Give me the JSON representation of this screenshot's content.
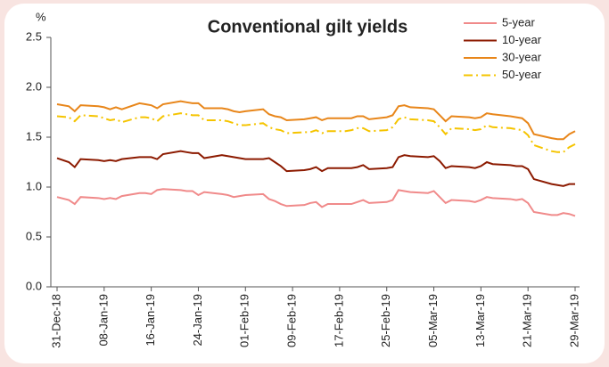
{
  "chart_data": {
    "type": "line",
    "title": "Conventional gilt yields",
    "y_label": "%",
    "x": [
      "31-Dec-18",
      "02-Jan-19",
      "03-Jan-19",
      "04-Jan-19",
      "07-Jan-19",
      "08-Jan-19",
      "09-Jan-19",
      "10-Jan-19",
      "11-Jan-19",
      "14-Jan-19",
      "15-Jan-19",
      "16-Jan-19",
      "17-Jan-19",
      "18-Jan-19",
      "21-Jan-19",
      "22-Jan-19",
      "23-Jan-19",
      "24-Jan-19",
      "25-Jan-19",
      "28-Jan-19",
      "29-Jan-19",
      "30-Jan-19",
      "31-Jan-19",
      "01-Feb-19",
      "04-Feb-19",
      "05-Feb-19",
      "06-Feb-19",
      "07-Feb-19",
      "08-Feb-19",
      "11-Feb-19",
      "12-Feb-19",
      "13-Feb-19",
      "14-Feb-19",
      "15-Feb-19",
      "18-Feb-19",
      "19-Feb-19",
      "20-Feb-19",
      "21-Feb-19",
      "22-Feb-19",
      "25-Feb-19",
      "26-Feb-19",
      "27-Feb-19",
      "28-Feb-19",
      "01-Mar-19",
      "04-Mar-19",
      "05-Mar-19",
      "06-Mar-19",
      "07-Mar-19",
      "08-Mar-19",
      "11-Mar-19",
      "12-Mar-19",
      "13-Mar-19",
      "14-Mar-19",
      "15-Mar-19",
      "18-Mar-19",
      "19-Mar-19",
      "20-Mar-19",
      "21-Mar-19",
      "22-Mar-19",
      "25-Mar-19",
      "26-Mar-19",
      "27-Mar-19",
      "28-Mar-19",
      "29-Mar-19"
    ],
    "series": [
      {
        "name": "5-year",
        "color": "#f08a8a",
        "dash": "none",
        "values": [
          0.9,
          0.87,
          0.83,
          0.9,
          0.89,
          0.88,
          0.89,
          0.88,
          0.91,
          0.94,
          0.94,
          0.93,
          0.97,
          0.98,
          0.97,
          0.96,
          0.96,
          0.92,
          0.95,
          0.93,
          0.92,
          0.9,
          0.91,
          0.92,
          0.93,
          0.88,
          0.86,
          0.83,
          0.81,
          0.82,
          0.84,
          0.85,
          0.8,
          0.83,
          0.83,
          0.83,
          0.85,
          0.87,
          0.84,
          0.85,
          0.87,
          0.97,
          0.96,
          0.95,
          0.94,
          0.96,
          0.9,
          0.84,
          0.87,
          0.86,
          0.85,
          0.87,
          0.9,
          0.89,
          0.88,
          0.87,
          0.88,
          0.84,
          0.75,
          0.72,
          0.72,
          0.74,
          0.73,
          0.71
        ]
      },
      {
        "name": "10-year",
        "color": "#8c1a00",
        "dash": "none",
        "values": [
          1.29,
          1.25,
          1.2,
          1.28,
          1.27,
          1.26,
          1.27,
          1.26,
          1.28,
          1.3,
          1.3,
          1.3,
          1.28,
          1.33,
          1.36,
          1.35,
          1.34,
          1.34,
          1.29,
          1.32,
          1.31,
          1.3,
          1.29,
          1.28,
          1.28,
          1.29,
          1.25,
          1.21,
          1.16,
          1.17,
          1.18,
          1.2,
          1.16,
          1.19,
          1.19,
          1.19,
          1.2,
          1.22,
          1.18,
          1.19,
          1.2,
          1.3,
          1.32,
          1.31,
          1.3,
          1.31,
          1.26,
          1.19,
          1.21,
          1.2,
          1.19,
          1.21,
          1.25,
          1.23,
          1.22,
          1.21,
          1.21,
          1.18,
          1.08,
          1.03,
          1.02,
          1.01,
          1.03,
          1.03
        ]
      },
      {
        "name": "30-year",
        "color": "#e8861a",
        "dash": "none",
        "values": [
          1.83,
          1.81,
          1.76,
          1.82,
          1.81,
          1.8,
          1.78,
          1.8,
          1.78,
          1.84,
          1.83,
          1.82,
          1.79,
          1.83,
          1.86,
          1.85,
          1.84,
          1.84,
          1.79,
          1.79,
          1.78,
          1.76,
          1.75,
          1.76,
          1.78,
          1.73,
          1.71,
          1.7,
          1.67,
          1.68,
          1.69,
          1.7,
          1.67,
          1.69,
          1.69,
          1.69,
          1.71,
          1.71,
          1.68,
          1.7,
          1.72,
          1.81,
          1.82,
          1.8,
          1.79,
          1.78,
          1.72,
          1.66,
          1.71,
          1.7,
          1.69,
          1.7,
          1.74,
          1.73,
          1.71,
          1.7,
          1.69,
          1.64,
          1.53,
          1.49,
          1.48,
          1.48,
          1.53,
          1.56
        ]
      },
      {
        "name": "50-year",
        "color": "#f5c400",
        "dash": "10 4 2 4",
        "values": [
          1.71,
          1.7,
          1.66,
          1.72,
          1.71,
          1.69,
          1.67,
          1.68,
          1.65,
          1.7,
          1.7,
          1.69,
          1.66,
          1.71,
          1.74,
          1.73,
          1.72,
          1.72,
          1.67,
          1.67,
          1.66,
          1.64,
          1.62,
          1.62,
          1.64,
          1.6,
          1.58,
          1.57,
          1.54,
          1.55,
          1.55,
          1.57,
          1.54,
          1.56,
          1.56,
          1.57,
          1.59,
          1.59,
          1.56,
          1.57,
          1.6,
          1.68,
          1.7,
          1.68,
          1.67,
          1.66,
          1.6,
          1.53,
          1.59,
          1.58,
          1.57,
          1.58,
          1.62,
          1.6,
          1.59,
          1.58,
          1.57,
          1.52,
          1.42,
          1.36,
          1.35,
          1.35,
          1.4,
          1.43
        ]
      }
    ],
    "xlim": [
      "31-Dec-18",
      "29-Mar-19"
    ],
    "xticks": [
      "31-Dec-18",
      "08-Jan-19",
      "16-Jan-19",
      "24-Jan-19",
      "01-Feb-19",
      "09-Feb-19",
      "17-Feb-19",
      "25-Feb-19",
      "05-Mar-19",
      "13-Mar-19",
      "21-Mar-19",
      "29-Mar-19"
    ],
    "ylim": [
      0,
      2.5
    ],
    "yticks": [
      {
        "value": 0,
        "label": "0.0"
      },
      {
        "value": 0.5,
        "label": "0.5"
      },
      {
        "value": 1,
        "label": "1.0"
      },
      {
        "value": 1.5,
        "label": "1.5"
      },
      {
        "value": 2,
        "label": "2.0"
      },
      {
        "value": 2.5,
        "label": "2.5"
      }
    ],
    "grid": false,
    "legend": "top-right"
  }
}
